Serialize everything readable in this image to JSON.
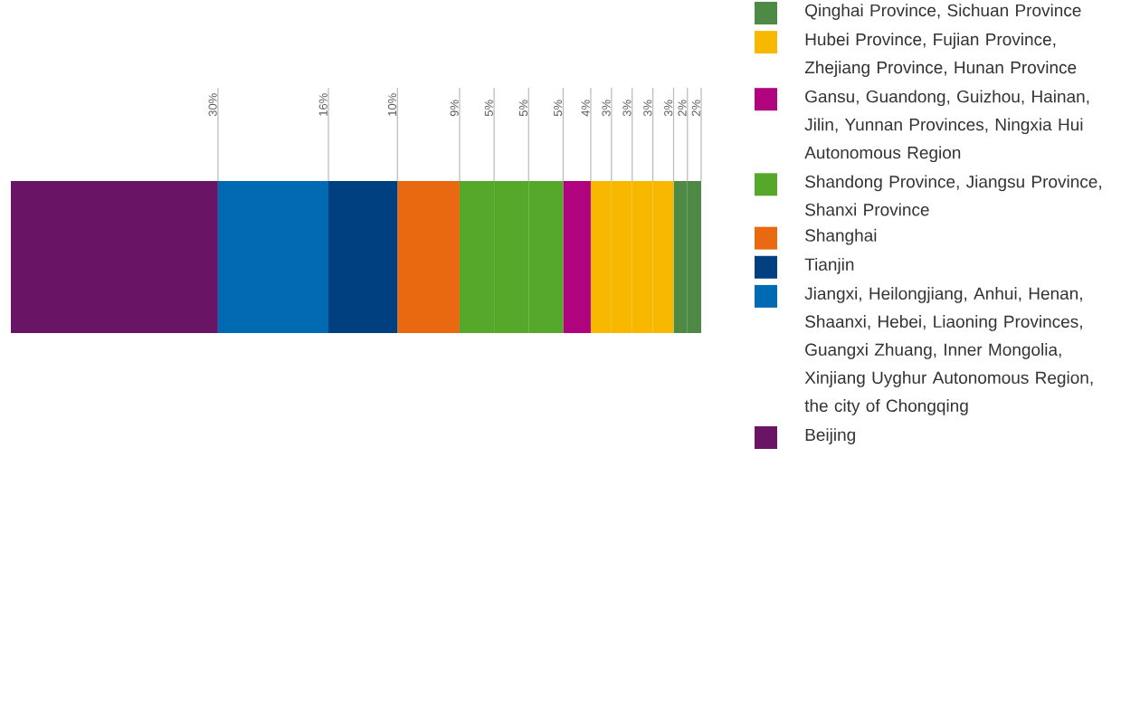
{
  "chart_data": {
    "type": "bar",
    "orientation": "horizontal",
    "stacked": true,
    "categories": [
      null
    ],
    "xlim": [
      0,
      100
    ],
    "legend": "right",
    "series": [
      {
        "name": "Beijing",
        "color": "#6a1466",
        "values": [
          30
        ],
        "value_labels": [
          "30%"
        ]
      },
      {
        "name": "Jiangxi, Heilongjiang, Anhui, Henan, Shaanxi, Hebei, Liaoning Provinces, Guangxi Zhuang, Inner Mongolia, Xinjiang Uyghur Autonomous Region, the city of Chongqing",
        "color": "#006ab2",
        "values": [
          16
        ],
        "value_labels": [
          "16%"
        ]
      },
      {
        "name": "Tianjin",
        "color": "#003f80",
        "values": [
          10
        ],
        "value_labels": [
          "10%"
        ]
      },
      {
        "name": "Shanghai",
        "color": "#e8690f",
        "values": [
          9
        ],
        "value_labels": [
          "9%"
        ]
      },
      {
        "name": "Shandong Province, Jiangsu Province, Shanxi Province",
        "color": "#56a82b",
        "values": [
          5
        ],
        "value_labels": [
          "5%"
        ]
      },
      {
        "color": "#56a82b",
        "values": [
          5
        ],
        "value_labels": [
          "5%"
        ]
      },
      {
        "color": "#56a82b",
        "values": [
          5
        ],
        "value_labels": [
          "5%"
        ]
      },
      {
        "name": "Gansu, Guandong, Guizhou, Hainan, Jilin, Yunnan Provinces, Ningxia Hui Autonomous Region",
        "color": "#b0047f",
        "values": [
          4
        ],
        "value_labels": [
          "4%"
        ]
      },
      {
        "name": "Hubei Province, Fujian Province, Zhejiang Province, Hunan Province",
        "color": "#f9b800",
        "values": [
          3
        ],
        "value_labels": [
          "3%"
        ]
      },
      {
        "color": "#f9b800",
        "values": [
          3
        ],
        "value_labels": [
          "3%"
        ]
      },
      {
        "color": "#f9b800",
        "values": [
          3
        ],
        "value_labels": [
          "3%"
        ]
      },
      {
        "color": "#f9b800",
        "values": [
          3
        ],
        "value_labels": [
          "3%"
        ]
      },
      {
        "name": "Qinghai Province, Sichuan Province",
        "color": "#4e8a45",
        "values": [
          2
        ],
        "value_labels": [
          "2%"
        ]
      },
      {
        "color": "#4e8a45",
        "values": [
          2
        ],
        "value_labels": [
          "2%"
        ]
      }
    ]
  }
}
